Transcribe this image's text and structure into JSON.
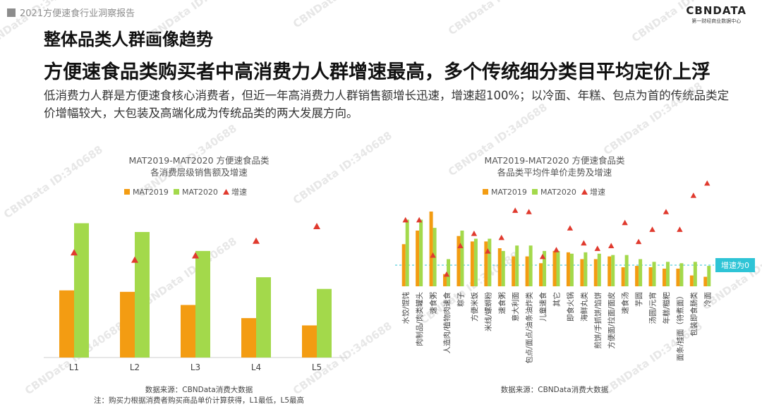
{
  "header": {
    "report_title": "2021方便速食行业洞察报告"
  },
  "logo": {
    "main": "CBNDATA",
    "sub": "第一财经商业数据中心"
  },
  "slide": {
    "title": "整体品类人群画像趋势",
    "subtitle": "方便速食品类购买者中高消费力人群增速最高，多个传统细分类目平均定价上浮",
    "description": "低消费力人群是方便速食核心消费者，但近一年高消费力人群销售额增长迅速，增速超100%；以冷面、年糕、包点为首的传统品类定价增幅较大，大包装及高端化成为传统品类的两大发展方向。"
  },
  "watermark": "CBNData ID:340688",
  "colors": {
    "mat2019": "#f39c12",
    "mat2020": "#a3d94b",
    "growth": "#e03a2e",
    "baseline": "#2ec4d6"
  },
  "chart_data": [
    {
      "type": "bar",
      "title": "MAT2019-MAT2020 方便速食品类",
      "subtitle": "各消费层级销售额及增速",
      "legend": [
        "MAT2019",
        "MAT2020",
        "增速"
      ],
      "categories": [
        "L1",
        "L2",
        "L3",
        "L4",
        "L5"
      ],
      "series": [
        {
          "name": "MAT2019",
          "values": [
            46,
            45,
            36,
            27,
            22
          ]
        },
        {
          "name": "MAT2020",
          "values": [
            92,
            86,
            73,
            55,
            47
          ]
        },
        {
          "name": "增速",
          "marker": "triangle",
          "values": [
            60,
            55,
            58,
            68,
            78
          ]
        }
      ],
      "ylim": [
        0,
        100
      ],
      "source": "数据来源：CBNData消费大数据",
      "note": "注：购买力根据消费者购买商品单价计算获得，L1最低，L5最高"
    },
    {
      "type": "bar",
      "title": "MAT2019-MAT2020 方便速食品类",
      "subtitle": "各品类平均件单价走势及增速",
      "legend": [
        "MAT2019",
        "MAT2020",
        "增速"
      ],
      "categories": [
        "水饺/馄饨",
        "肉制品/肉类罐头",
        "速食粥",
        "人造肉/植物肉速食",
        "粽子",
        "方便米饭",
        "米线/螺蛳粉",
        "速食粥",
        "意大利面",
        "包点/面点/油条油炸类",
        "儿童速食",
        "其它",
        "即食火锅",
        "海鲜丸类",
        "煎饼/手抓饼/馅饼",
        "方便面/拉面/面皮",
        "速食汤",
        "芋圆",
        "汤圆/元宵",
        "年糕/糍粑",
        "面条/挂面（待煮面）",
        "包装即食肠类",
        "冷面"
      ],
      "series": [
        {
          "name": "MAT2019",
          "values": [
            31,
            41,
            55,
            9,
            37,
            33,
            33,
            28,
            22,
            22,
            17,
            26,
            25,
            20,
            20,
            22,
            14,
            15,
            14,
            13,
            13,
            8,
            7
          ]
        },
        {
          "name": "MAT2020",
          "values": [
            49,
            49,
            43,
            20,
            41,
            35,
            35,
            26,
            30,
            30,
            26,
            26,
            24,
            25,
            24,
            23,
            23,
            20,
            18,
            18,
            17,
            18,
            15
          ]
        },
        {
          "name": "增速",
          "marker": "triangle",
          "values": [
            49,
            49,
            23,
            9,
            30,
            39,
            26,
            36,
            56,
            55,
            22,
            27,
            43,
            32,
            28,
            30,
            47,
            33,
            42,
            55,
            42,
            67,
            76
          ]
        }
      ],
      "baseline_label": "增速为0",
      "ylim": [
        0,
        100
      ],
      "source": "数据来源：CBNData消费大数据"
    }
  ]
}
